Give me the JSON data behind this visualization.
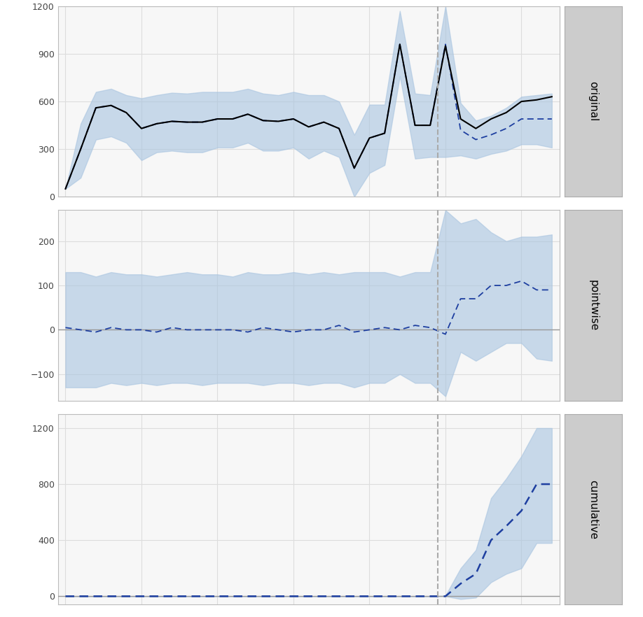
{
  "n_pre": 25,
  "n_post": 8,
  "intervention_idx": 25,
  "panel_labels": [
    "original",
    "pointwise",
    "cumulative"
  ],
  "label_bg": "#cccccc",
  "orig_actual": [
    50,
    300,
    560,
    575,
    530,
    430,
    460,
    475,
    470,
    470,
    490,
    490,
    520,
    480,
    475,
    490,
    440,
    470,
    430,
    180,
    370,
    400,
    960,
    450,
    450,
    950,
    490,
    430,
    490,
    530,
    600,
    610,
    630
  ],
  "orig_pred": [
    50,
    300,
    560,
    575,
    530,
    430,
    460,
    475,
    470,
    470,
    490,
    490,
    520,
    480,
    475,
    490,
    440,
    470,
    430,
    180,
    370,
    400,
    960,
    450,
    450,
    960,
    420,
    360,
    390,
    430,
    490,
    490,
    490
  ],
  "orig_lower": [
    50,
    120,
    360,
    380,
    340,
    230,
    280,
    290,
    280,
    280,
    310,
    310,
    340,
    290,
    290,
    310,
    240,
    290,
    250,
    0,
    150,
    200,
    760,
    240,
    250,
    250,
    260,
    240,
    270,
    290,
    330,
    330,
    310
  ],
  "orig_upper": [
    50,
    460,
    660,
    680,
    640,
    620,
    640,
    655,
    650,
    660,
    660,
    660,
    680,
    650,
    640,
    660,
    640,
    640,
    600,
    390,
    580,
    580,
    1170,
    650,
    640,
    1200,
    590,
    480,
    510,
    560,
    630,
    640,
    650
  ],
  "pt_effect": [
    5,
    0,
    -5,
    5,
    0,
    0,
    -5,
    5,
    0,
    0,
    0,
    0,
    -5,
    5,
    0,
    -5,
    0,
    0,
    10,
    -5,
    0,
    5,
    0,
    10,
    5,
    -10,
    70,
    70,
    100,
    100,
    110,
    90,
    90
  ],
  "pt_lower": [
    -130,
    -130,
    -130,
    -120,
    -125,
    -120,
    -125,
    -120,
    -120,
    -125,
    -120,
    -120,
    -120,
    -125,
    -120,
    -120,
    -125,
    -120,
    -120,
    -130,
    -120,
    -120,
    -100,
    -120,
    -120,
    -150,
    -50,
    -70,
    -50,
    -30,
    -30,
    -65,
    -70
  ],
  "pt_upper": [
    130,
    130,
    120,
    130,
    125,
    125,
    120,
    125,
    130,
    125,
    125,
    120,
    130,
    125,
    125,
    130,
    125,
    130,
    125,
    130,
    130,
    130,
    120,
    130,
    130,
    270,
    240,
    250,
    220,
    200,
    210,
    210,
    215
  ],
  "cum_effect": [
    0,
    0,
    0,
    0,
    0,
    0,
    0,
    0,
    0,
    0,
    0,
    0,
    0,
    0,
    0,
    0,
    0,
    0,
    0,
    0,
    0,
    0,
    0,
    0,
    0,
    0,
    90,
    160,
    400,
    500,
    610,
    800,
    800
  ],
  "cum_lower": [
    0,
    0,
    0,
    0,
    0,
    0,
    0,
    0,
    0,
    0,
    0,
    0,
    0,
    0,
    0,
    0,
    0,
    0,
    0,
    0,
    0,
    0,
    0,
    0,
    0,
    0,
    -20,
    -10,
    100,
    160,
    200,
    380,
    380
  ],
  "cum_upper": [
    0,
    0,
    0,
    0,
    0,
    0,
    0,
    0,
    0,
    0,
    0,
    0,
    0,
    0,
    0,
    0,
    0,
    0,
    0,
    0,
    0,
    0,
    0,
    0,
    0,
    5,
    200,
    330,
    700,
    840,
    1000,
    1200,
    1200
  ],
  "orig_ylim": [
    0,
    1200
  ],
  "orig_yticks": [
    0,
    300,
    600,
    900,
    1200
  ],
  "pt_ylim": [
    -160,
    270
  ],
  "pt_yticks": [
    -100,
    0,
    100,
    200
  ],
  "cum_ylim": [
    -60,
    1300
  ],
  "cum_yticks": [
    0,
    400,
    800,
    1200
  ],
  "fill_color": "#a8c4e0",
  "fill_alpha": 0.6,
  "actual_color": "#000000",
  "pred_color": "#1e3fa0",
  "vline_color": "#aaaaaa",
  "hline_color": "#999999",
  "grid_color": "#dddddd",
  "panel_bg": "#f7f7f7"
}
